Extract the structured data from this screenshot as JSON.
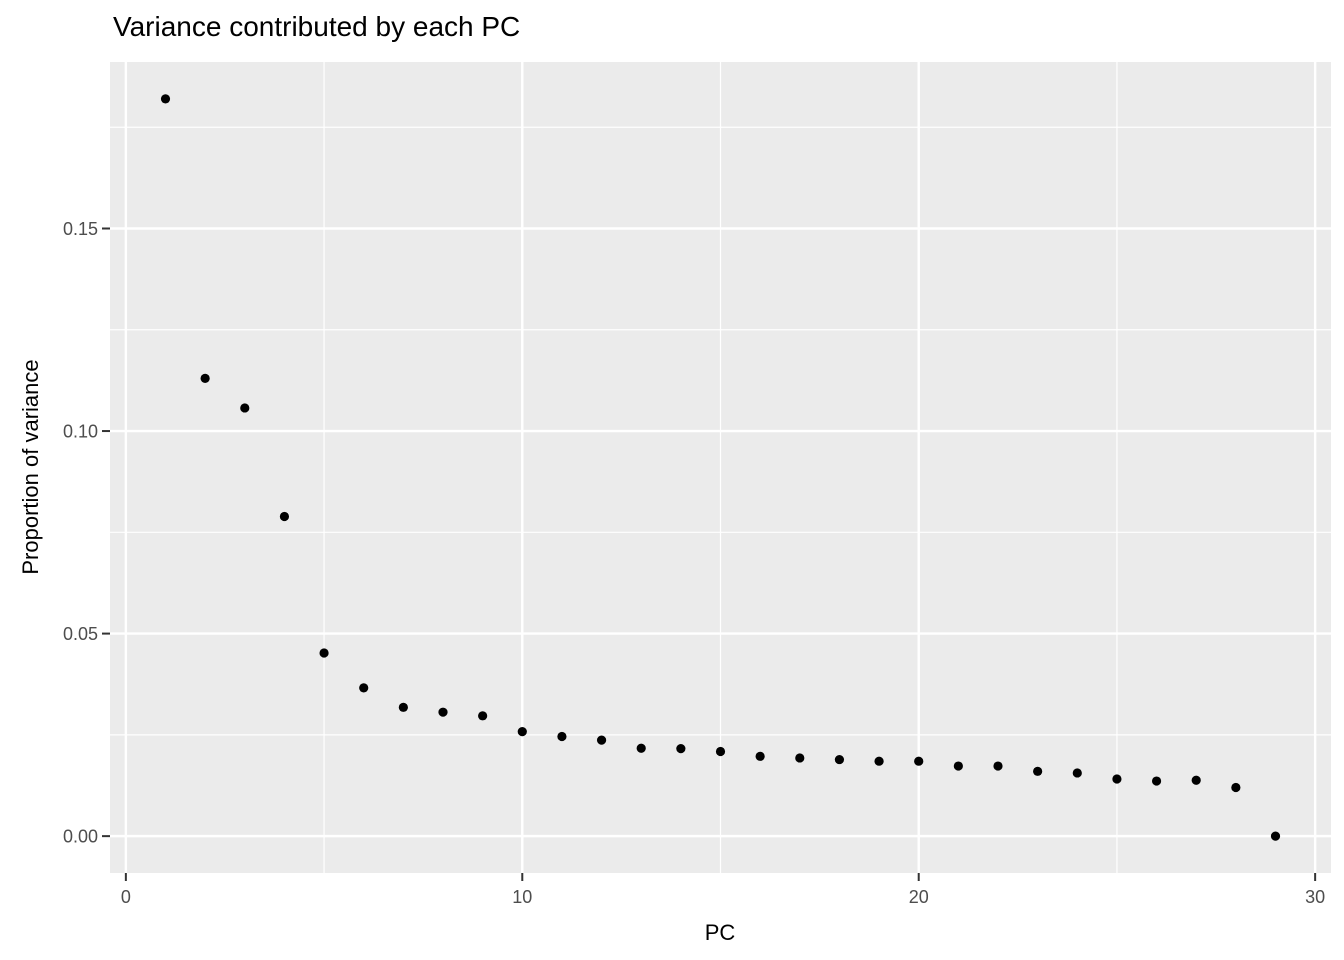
{
  "chart_data": {
    "type": "scatter",
    "title": "Variance contributed by each PC",
    "xlabel": "PC",
    "ylabel": "Proportion of variance",
    "x": [
      1,
      2,
      3,
      4,
      5,
      6,
      7,
      8,
      9,
      10,
      11,
      12,
      13,
      14,
      15,
      16,
      17,
      18,
      19,
      20,
      21,
      22,
      23,
      24,
      25,
      26,
      27,
      28,
      29
    ],
    "y": [
      0.182,
      0.113,
      0.1057,
      0.0789,
      0.0452,
      0.0366,
      0.0318,
      0.0306,
      0.0297,
      0.0258,
      0.0246,
      0.0237,
      0.0217,
      0.0216,
      0.0209,
      0.0197,
      0.0193,
      0.0189,
      0.0185,
      0.0185,
      0.0173,
      0.0173,
      0.016,
      0.0156,
      0.0141,
      0.0136,
      0.0138,
      0.012,
      0.0
    ],
    "xlim": [
      -0.4,
      30.4
    ],
    "ylim": [
      -0.0091,
      0.1911
    ],
    "x_major_ticks": [
      0,
      10,
      20,
      30
    ],
    "x_tick_labels": [
      "0",
      "10",
      "20",
      "30"
    ],
    "x_minor_ticks": [
      5,
      15,
      25
    ],
    "y_major_ticks": [
      0.0,
      0.05,
      0.1,
      0.15
    ],
    "y_tick_labels": [
      "0.00",
      "0.05",
      "0.10",
      "0.15"
    ],
    "y_minor_ticks": [
      0.025,
      0.075,
      0.125,
      0.175
    ],
    "grid": true,
    "legend": "none",
    "style": {
      "panel_bg": "#EBEBEB",
      "grid_color": "#FFFFFF",
      "point_color": "#000000",
      "tick_label_color": "#4D4D4D",
      "axis_tick_color": "#333333",
      "title_color": "#000000"
    }
  }
}
